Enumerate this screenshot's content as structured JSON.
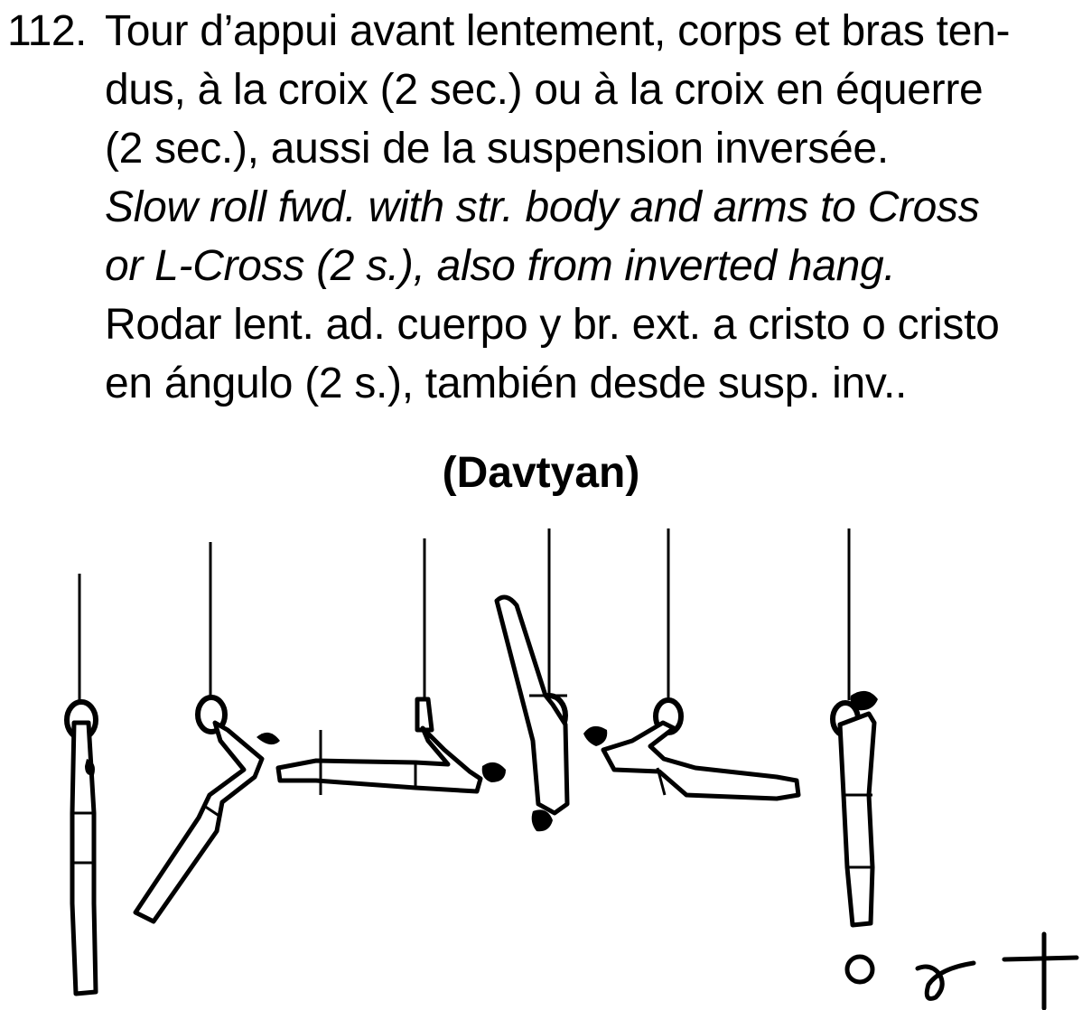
{
  "element": {
    "number": "112.",
    "lines_fr": [
      "Tour d’appui avant lentement, corps et bras ten-",
      "dus, à la croix (2 sec.) ou à la croix en équerre",
      "(2 sec.), aussi de la suspension inversée."
    ],
    "lines_en": [
      "Slow roll fwd. with str. body and arms to Cross",
      "or L-Cross (2 s.), also from inverted hang."
    ],
    "lines_es": [
      "Rodar lent. ad. cuerpo y br. ext. a cristo o cristo",
      "en ángulo (2 s.), también desde susp. inv.."
    ],
    "name": "(Davtyan)"
  },
  "illustration": {
    "figure_count": 6,
    "symbols": [
      "circle-symbol",
      "swirl-symbol",
      "cross-symbol"
    ]
  }
}
